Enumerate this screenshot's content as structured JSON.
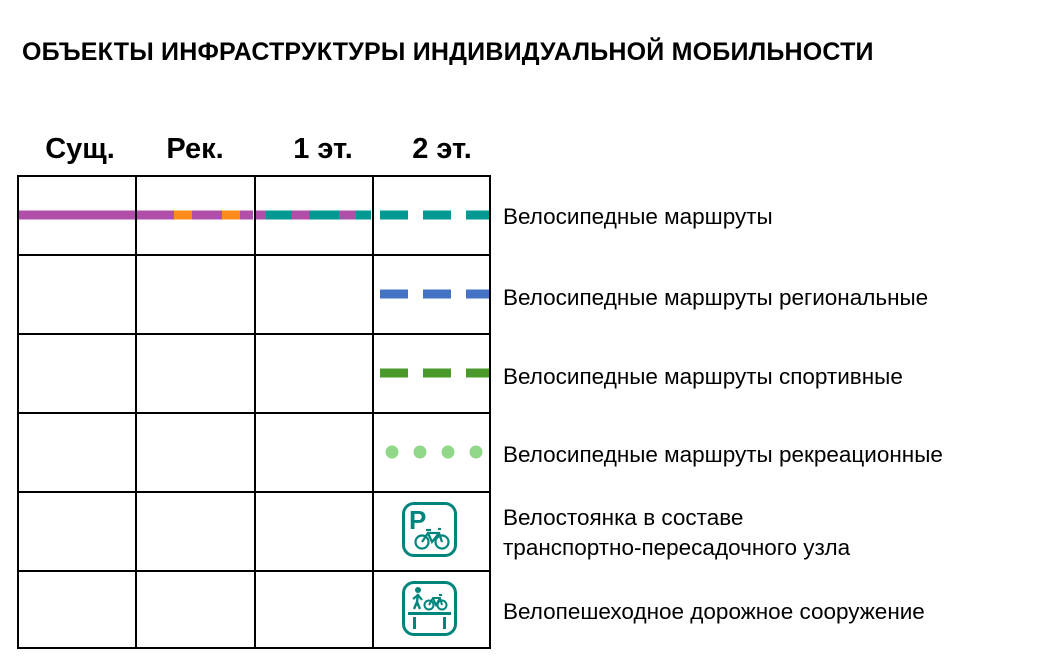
{
  "title": "ОБЪЕКТЫ ИНФРАСТРУКТУРЫ ИНДИВИДУАЛЬНОЙ МОБИЛЬНОСТИ",
  "columns": [
    "Сущ.",
    "Рек.",
    "1 эт.",
    "2 эт."
  ],
  "rows": [
    {
      "label": "Велосипедные маршруты",
      "symbol": "dashed-line",
      "color": "#009a93"
    },
    {
      "label": "Велосипедные маршруты региональные",
      "symbol": "dashed-line",
      "color": "#4472c4"
    },
    {
      "label": "Велосипедные маршруты спортивные",
      "symbol": "dashed-line",
      "color": "#4a9a2a"
    },
    {
      "label": "Велосипедные маршруты рекреационные",
      "symbol": "dotted-line",
      "color": "#90d888"
    },
    {
      "label_lines": [
        "Велостоянка в составе",
        "транспортно-пересадочного узла"
      ],
      "symbol": "bike-parking-icon",
      "color": "#00857d"
    },
    {
      "label": "Велопешеходное дорожное сооружение",
      "symbol": "pedestrian-bike-bridge-icon",
      "color": "#00857d"
    }
  ],
  "colors": {
    "existing": "#b04fa8",
    "recommended_accent": "#ff8c1a",
    "teal": "#009a93",
    "icon_teal": "#00857d",
    "grid": "#000000"
  },
  "icons": {
    "parking_letter": "P"
  }
}
